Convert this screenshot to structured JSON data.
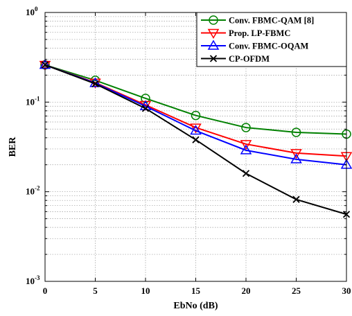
{
  "chart_data": {
    "type": "line",
    "title": "",
    "xlabel": "EbNo (dB)",
    "ylabel": "BER",
    "xlim": [
      0,
      30
    ],
    "ylim": [
      0.001,
      1
    ],
    "yscale": "log",
    "grid": true,
    "legend_position": "top-right",
    "x": [
      0,
      5,
      10,
      15,
      20,
      25,
      30
    ],
    "x_ticks": [
      "0",
      "5",
      "10",
      "15",
      "20",
      "25",
      "30"
    ],
    "y_ticks": [
      {
        "base": "10",
        "exp": "0"
      },
      {
        "base": "10",
        "exp": "-1"
      },
      {
        "base": "10",
        "exp": "-2"
      },
      {
        "base": "10",
        "exp": "-3"
      }
    ],
    "series": [
      {
        "name": "Conv. FBMC-QAM [8]",
        "color": "#008000",
        "marker": "circle",
        "values": [
          0.26,
          0.175,
          0.11,
          0.071,
          0.052,
          0.046,
          0.044
        ]
      },
      {
        "name": "Prop. LP-FBMC",
        "color": "#ff0000",
        "marker": "triangle-down",
        "values": [
          0.26,
          0.165,
          0.093,
          0.052,
          0.034,
          0.027,
          0.025
        ]
      },
      {
        "name": "Conv. FBMC-OQAM",
        "color": "#0000ff",
        "marker": "triangle-up",
        "values": [
          0.26,
          0.163,
          0.09,
          0.048,
          0.029,
          0.023,
          0.02
        ]
      },
      {
        "name": "CP-OFDM",
        "color": "#000000",
        "marker": "x",
        "values": [
          0.26,
          0.16,
          0.085,
          0.038,
          0.016,
          0.0082,
          0.0056
        ]
      }
    ]
  }
}
